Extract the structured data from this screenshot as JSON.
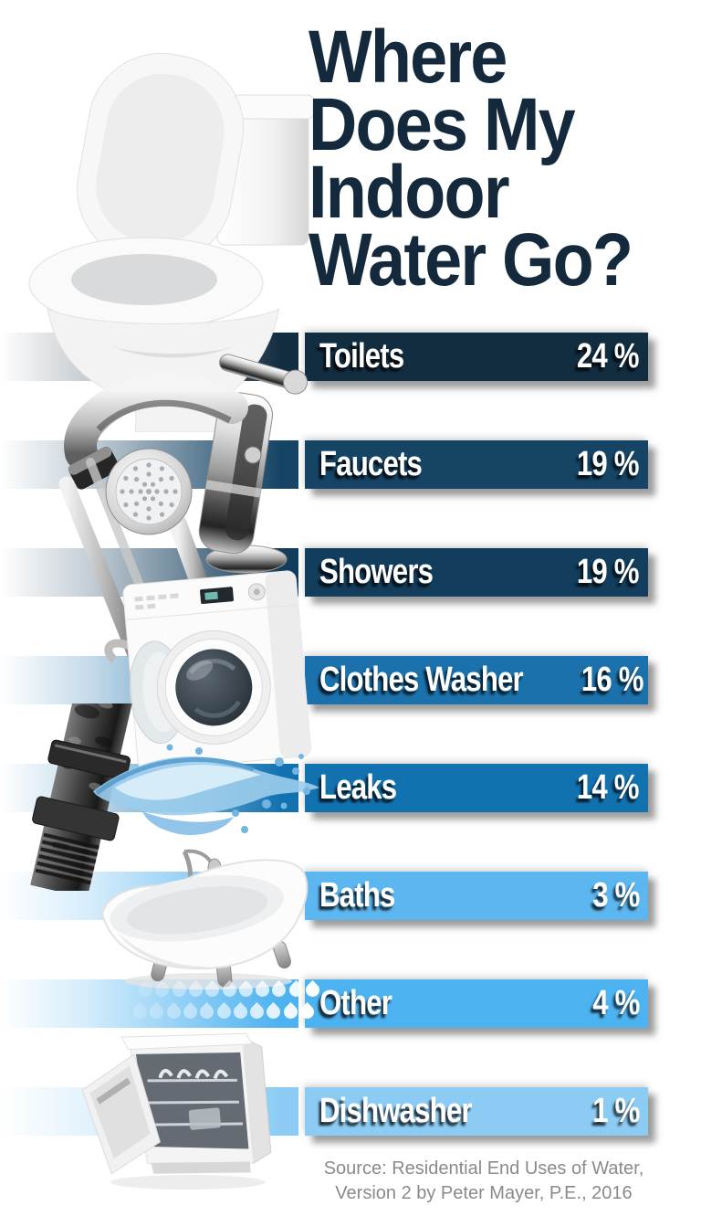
{
  "title": {
    "lines": [
      "Where",
      "Does My",
      "Indoor",
      "Water Go?"
    ]
  },
  "chart_data": {
    "type": "bar",
    "orientation": "horizontal",
    "title": "Where Does My Indoor Water Go?",
    "unit": "%",
    "categories": [
      "Toilets",
      "Faucets",
      "Showers",
      "Clothes Washer",
      "Leaks",
      "Baths",
      "Other",
      "Dishwasher"
    ],
    "values": [
      24,
      19,
      19,
      16,
      14,
      3,
      4,
      1
    ],
    "value_labels": [
      "24 %",
      "19 %",
      "19 %",
      "16 %",
      "14 %",
      "3 %",
      "4 %",
      "1 %"
    ],
    "bar_colors": [
      "#122c40",
      "#164465",
      "#123d5c",
      "#1b71ab",
      "#1272b0",
      "#5cb6ef",
      "#4db2f0",
      "#8cccf4"
    ],
    "legend": false,
    "gridlines": false,
    "source": "Source: Residential End Uses of Water, Version 2 by Peter Mayer, P.E., 2016"
  },
  "icons": {
    "row_icons": [
      "toilet-image",
      "faucet-image",
      "shower-head-image",
      "clothes-washer-image",
      "leaking-pipe-image",
      "bathtub-image",
      "water-drops-icon",
      "dishwasher-image"
    ],
    "water_drops": {
      "rows": 2,
      "per_row": 11
    }
  },
  "source": {
    "line1": "Source: Residential End Uses of Water,",
    "line2": "Version 2 by Peter Mayer, P.E., 2016"
  },
  "colors": {
    "background": "#ffffff",
    "title_text": "#142a3c",
    "bar_text": "#ffffff",
    "source_text": "#8a8a8a"
  }
}
